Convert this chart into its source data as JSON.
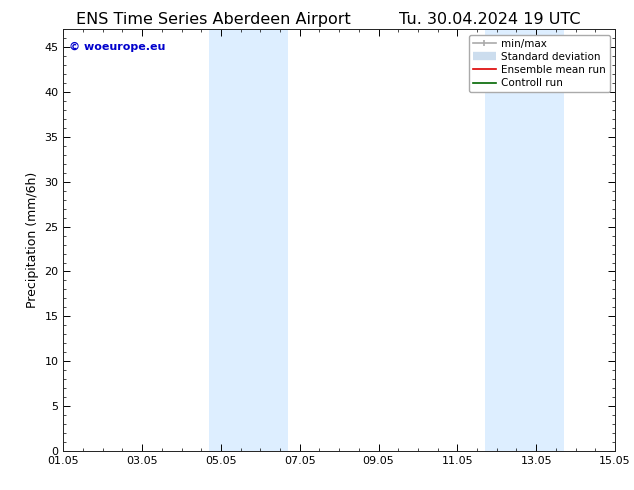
{
  "title_left": "ENS Time Series Aberdeen Airport",
  "title_right": "Tu. 30.04.2024 19 UTC",
  "ylabel": "Precipitation (mm/6h)",
  "xlabel": "",
  "ylim": [
    0,
    47
  ],
  "yticks": [
    0,
    5,
    10,
    15,
    20,
    25,
    30,
    35,
    40,
    45
  ],
  "xtick_labels": [
    "01.05",
    "03.05",
    "05.05",
    "07.05",
    "09.05",
    "11.05",
    "13.05",
    "15.05"
  ],
  "xtick_positions": [
    0,
    2,
    4,
    6,
    8,
    10,
    12,
    14
  ],
  "xlim": [
    0,
    14
  ],
  "watermark": "© woeurope.eu",
  "watermark_color": "#0000cc",
  "background_color": "#ffffff",
  "plot_bg_color": "#ffffff",
  "shaded_bands": [
    {
      "x_start": 3.7,
      "x_end": 5.7,
      "color": "#ddeeff"
    },
    {
      "x_start": 10.7,
      "x_end": 12.7,
      "color": "#ddeeff"
    }
  ],
  "legend_entries": [
    {
      "label": "min/max",
      "color": "#aaaaaa",
      "lw": 1.2,
      "style": "line_with_caps"
    },
    {
      "label": "Standard deviation",
      "color": "#ccddee",
      "lw": 8,
      "style": "thick_line"
    },
    {
      "label": "Ensemble mean run",
      "color": "#dd0000",
      "lw": 1.2,
      "style": "line"
    },
    {
      "label": "Controll run",
      "color": "#006600",
      "lw": 1.2,
      "style": "line"
    }
  ],
  "title_fontsize": 11.5,
  "axis_label_fontsize": 9,
  "tick_fontsize": 8,
  "legend_fontsize": 7.5
}
